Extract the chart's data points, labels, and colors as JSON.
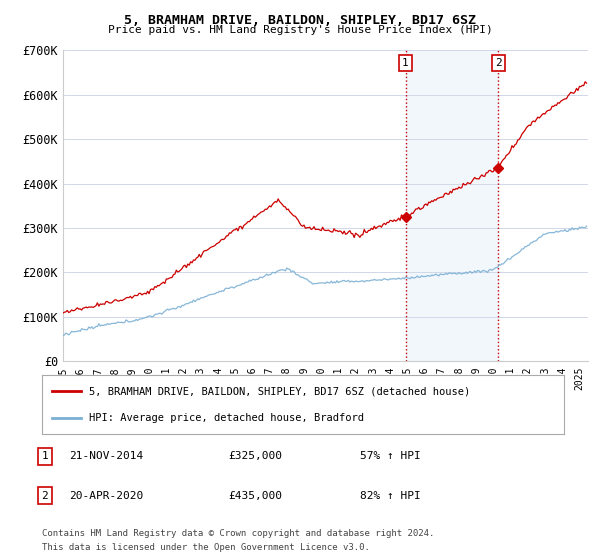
{
  "title": "5, BRAMHAM DRIVE, BAILDON, SHIPLEY, BD17 6SZ",
  "subtitle": "Price paid vs. HM Land Registry's House Price Index (HPI)",
  "legend_line1": "5, BRAMHAM DRIVE, BAILDON, SHIPLEY, BD17 6SZ (detached house)",
  "legend_line2": "HPI: Average price, detached house, Bradford",
  "annotation1_label": "1",
  "annotation1_date": "21-NOV-2014",
  "annotation1_price": "£325,000",
  "annotation1_hpi": "57% ↑ HPI",
  "annotation2_label": "2",
  "annotation2_date": "20-APR-2020",
  "annotation2_price": "£435,000",
  "annotation2_hpi": "82% ↑ HPI",
  "footnote1": "Contains HM Land Registry data © Crown copyright and database right 2024.",
  "footnote2": "This data is licensed under the Open Government Licence v3.0.",
  "hpi_color": "#7bafd4",
  "price_color": "#cc0000",
  "vline_color": "#cc0000",
  "highlight_color": "#daeaf7",
  "ylim": [
    0,
    700000
  ],
  "yticks": [
    0,
    100000,
    200000,
    300000,
    400000,
    500000,
    600000,
    700000
  ],
  "ytick_labels": [
    "£0",
    "£100K",
    "£200K",
    "£300K",
    "£400K",
    "£500K",
    "£600K",
    "£700K"
  ],
  "sale1_year": 2014.9,
  "sale1_price": 325000,
  "sale2_year": 2020.3,
  "sale2_price": 435000,
  "xmin": 1995,
  "xmax": 2025.5
}
